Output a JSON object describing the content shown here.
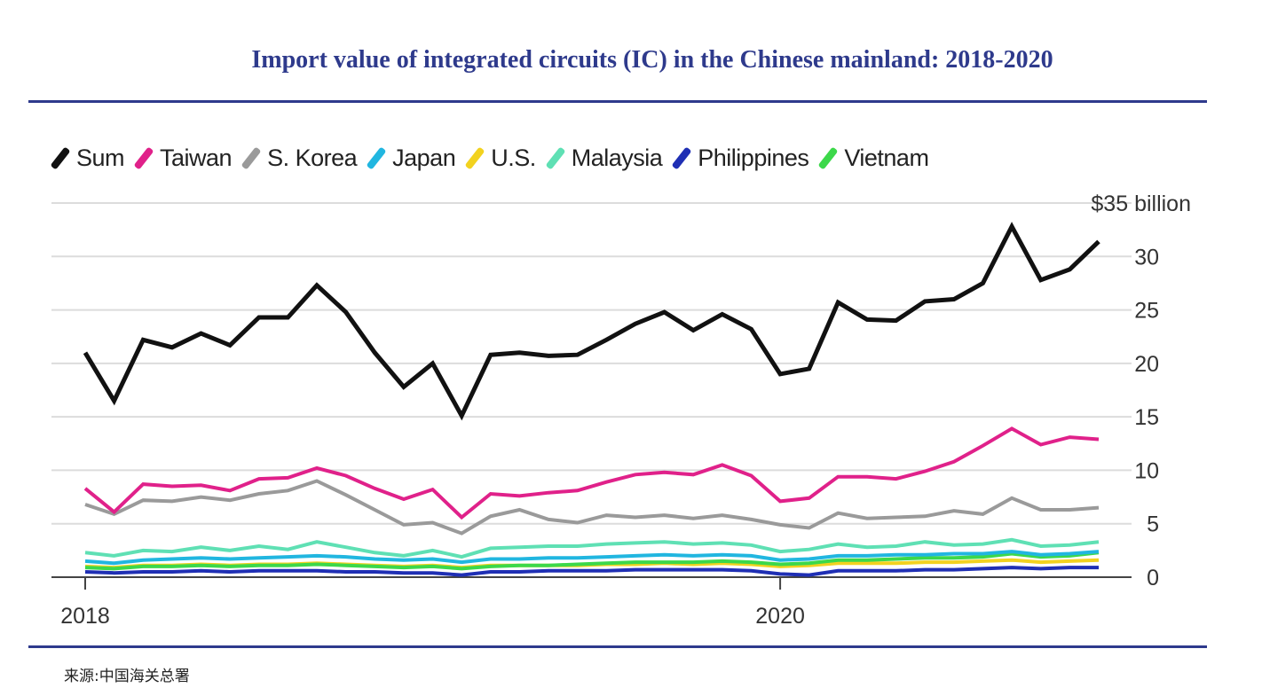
{
  "title": "Import value of integrated circuits (IC) in the Chinese mainland: 2018-2020",
  "source": "来源:中国海关总署",
  "colors": {
    "title": "#2e3a8c",
    "Sum": "#111111",
    "Taiwan": "#e0218a",
    "S. Korea": "#9a9a9a",
    "Japan": "#21b6e0",
    "U.S.": "#f2d21f",
    "Malaysia": "#5fe0b4",
    "Philippines": "#1f2fb4",
    "Vietnam": "#3cd84a"
  },
  "chart_data": {
    "type": "line",
    "title": "",
    "xlabel": "",
    "ylabel": "",
    "y_top_label": "$35 billion",
    "ylim": [
      0,
      35
    ],
    "y_ticks": [
      0,
      5,
      10,
      15,
      20,
      25,
      30
    ],
    "x_ticks": [
      "2018",
      "2020"
    ],
    "legend_position": "top",
    "grid": true,
    "x": [
      "2018-01",
      "2018-02",
      "2018-03",
      "2018-04",
      "2018-05",
      "2018-06",
      "2018-07",
      "2018-08",
      "2018-09",
      "2018-10",
      "2018-11",
      "2018-12",
      "2019-01",
      "2019-02",
      "2019-03",
      "2019-04",
      "2019-05",
      "2019-06",
      "2019-07",
      "2019-08",
      "2019-09",
      "2019-10",
      "2019-11",
      "2019-12",
      "2020-01",
      "2020-02",
      "2020-03",
      "2020-04",
      "2020-05",
      "2020-06",
      "2020-07",
      "2020-08",
      "2020-09",
      "2020-10",
      "2020-11",
      "2020-12"
    ],
    "series": [
      {
        "name": "Sum",
        "values": [
          21.0,
          16.5,
          22.2,
          21.5,
          22.8,
          21.7,
          24.3,
          24.3,
          27.3,
          24.8,
          21.0,
          17.8,
          20.0,
          15.1,
          20.8,
          21.0,
          20.7,
          20.8,
          22.2,
          23.7,
          24.8,
          23.1,
          24.6,
          23.2,
          19.0,
          19.5,
          25.7,
          24.1,
          24.0,
          25.8,
          26.0,
          27.5,
          32.8,
          27.8,
          28.8,
          31.4
        ]
      },
      {
        "name": "Taiwan",
        "values": [
          8.3,
          6.1,
          8.7,
          8.5,
          8.6,
          8.1,
          9.2,
          9.3,
          10.2,
          9.5,
          8.3,
          7.3,
          8.2,
          5.6,
          7.8,
          7.6,
          7.9,
          8.1,
          8.9,
          9.6,
          9.8,
          9.6,
          10.5,
          9.5,
          7.1,
          7.4,
          9.4,
          9.4,
          9.2,
          9.9,
          10.8,
          12.3,
          13.9,
          12.4,
          13.1,
          12.9
        ]
      },
      {
        "name": "S. Korea",
        "values": [
          6.8,
          5.9,
          7.2,
          7.1,
          7.5,
          7.2,
          7.8,
          8.1,
          9.0,
          7.7,
          6.3,
          4.9,
          5.1,
          4.1,
          5.7,
          6.3,
          5.4,
          5.1,
          5.8,
          5.6,
          5.8,
          5.5,
          5.8,
          5.4,
          4.9,
          4.6,
          6.0,
          5.5,
          5.6,
          5.7,
          6.2,
          5.9,
          7.4,
          6.3,
          6.3,
          6.5
        ]
      },
      {
        "name": "Japan",
        "values": [
          1.5,
          1.3,
          1.6,
          1.7,
          1.8,
          1.7,
          1.8,
          1.9,
          2.0,
          1.9,
          1.7,
          1.6,
          1.7,
          1.4,
          1.7,
          1.7,
          1.8,
          1.8,
          1.9,
          2.0,
          2.1,
          2.0,
          2.1,
          2.0,
          1.6,
          1.7,
          2.0,
          2.0,
          2.1,
          2.1,
          2.2,
          2.2,
          2.4,
          2.1,
          2.2,
          2.4
        ]
      },
      {
        "name": "U.S.",
        "values": [
          1.0,
          0.9,
          1.1,
          1.1,
          1.2,
          1.1,
          1.2,
          1.2,
          1.3,
          1.2,
          1.1,
          1.0,
          1.1,
          0.9,
          1.1,
          1.1,
          1.1,
          1.1,
          1.2,
          1.2,
          1.3,
          1.2,
          1.3,
          1.2,
          1.0,
          1.1,
          1.3,
          1.3,
          1.3,
          1.4,
          1.4,
          1.5,
          1.6,
          1.4,
          1.5,
          1.6
        ]
      },
      {
        "name": "Malaysia",
        "values": [
          2.3,
          2.0,
          2.5,
          2.4,
          2.8,
          2.5,
          2.9,
          2.6,
          3.3,
          2.8,
          2.3,
          2.0,
          2.5,
          1.9,
          2.7,
          2.8,
          2.9,
          2.9,
          3.1,
          3.2,
          3.3,
          3.1,
          3.2,
          3.0,
          2.4,
          2.6,
          3.1,
          2.8,
          2.9,
          3.3,
          3.0,
          3.1,
          3.5,
          2.9,
          3.0,
          3.3
        ]
      },
      {
        "name": "Philippines",
        "values": [
          0.5,
          0.4,
          0.5,
          0.5,
          0.6,
          0.5,
          0.6,
          0.6,
          0.6,
          0.5,
          0.5,
          0.4,
          0.4,
          0.2,
          0.5,
          0.5,
          0.6,
          0.6,
          0.6,
          0.7,
          0.7,
          0.7,
          0.7,
          0.6,
          0.3,
          0.2,
          0.6,
          0.6,
          0.6,
          0.7,
          0.7,
          0.8,
          0.9,
          0.8,
          0.9,
          0.9
        ]
      },
      {
        "name": "Vietnam",
        "values": [
          0.9,
          0.8,
          1.0,
          1.0,
          1.1,
          1.0,
          1.1,
          1.1,
          1.2,
          1.1,
          1.0,
          0.9,
          1.0,
          0.8,
          1.0,
          1.1,
          1.1,
          1.2,
          1.3,
          1.4,
          1.4,
          1.4,
          1.5,
          1.4,
          1.2,
          1.3,
          1.6,
          1.6,
          1.7,
          1.8,
          1.8,
          1.9,
          2.2,
          1.9,
          2.0,
          2.3
        ]
      }
    ]
  }
}
